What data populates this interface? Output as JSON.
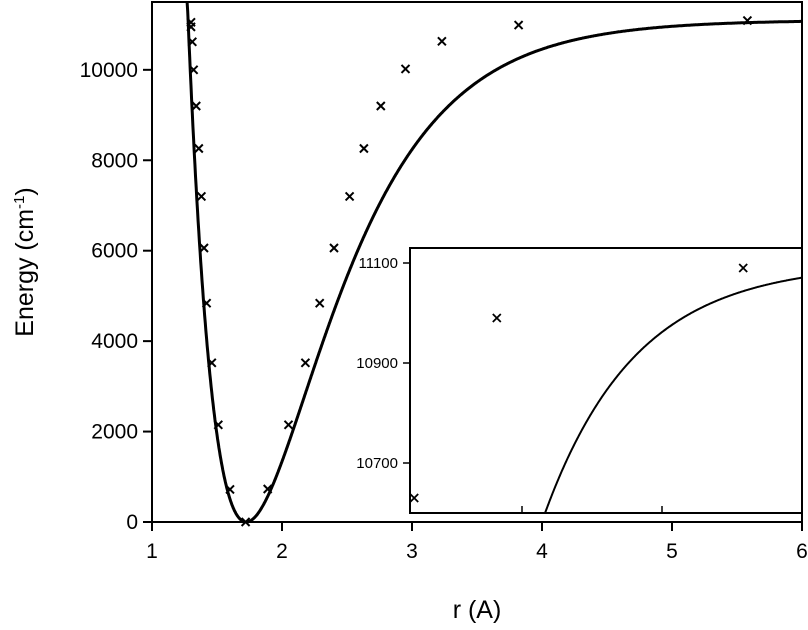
{
  "chart_data": [
    {
      "type": "line",
      "title": "",
      "xlabel": "r (A)",
      "ylabel_main": "Energy (cm",
      "ylabel_sup": "-1",
      "ylabel_close": ")",
      "xlim": [
        1,
        6
      ],
      "ylim": [
        0,
        11500
      ],
      "xticks": [
        1,
        2,
        3,
        4,
        5,
        6
      ],
      "yticks": [
        0,
        2000,
        4000,
        6000,
        8000,
        10000
      ],
      "grid": false,
      "legend": "none",
      "curve": {
        "De": 11100,
        "a": 1.55,
        "re": 1.725
      },
      "markers": {
        "x": [
          1.3,
          1.3,
          1.31,
          1.32,
          1.34,
          1.36,
          1.38,
          1.4,
          1.42,
          1.46,
          1.51,
          1.6,
          1.72,
          1.89,
          2.05,
          2.18,
          2.29,
          2.4,
          2.52,
          2.63,
          2.76,
          2.95,
          3.23,
          3.82,
          5.58
        ],
        "y": [
          11050,
          10950,
          10620,
          10000,
          9200,
          8260,
          7200,
          6060,
          4840,
          3520,
          2150,
          720,
          0,
          730,
          2150,
          3520,
          4840,
          6060,
          7200,
          8260,
          9200,
          10020,
          10630,
          10990,
          11090
        ]
      }
    },
    {
      "type": "line",
      "title": "",
      "xlim": [
        3.2,
        6
      ],
      "ylim": [
        10600,
        11130
      ],
      "yticks": [
        10700,
        10900,
        11100
      ],
      "grid": false,
      "markers": {
        "x": [
          3.23,
          3.82,
          5.58
        ],
        "y": [
          10630,
          10990,
          11090
        ]
      }
    }
  ]
}
